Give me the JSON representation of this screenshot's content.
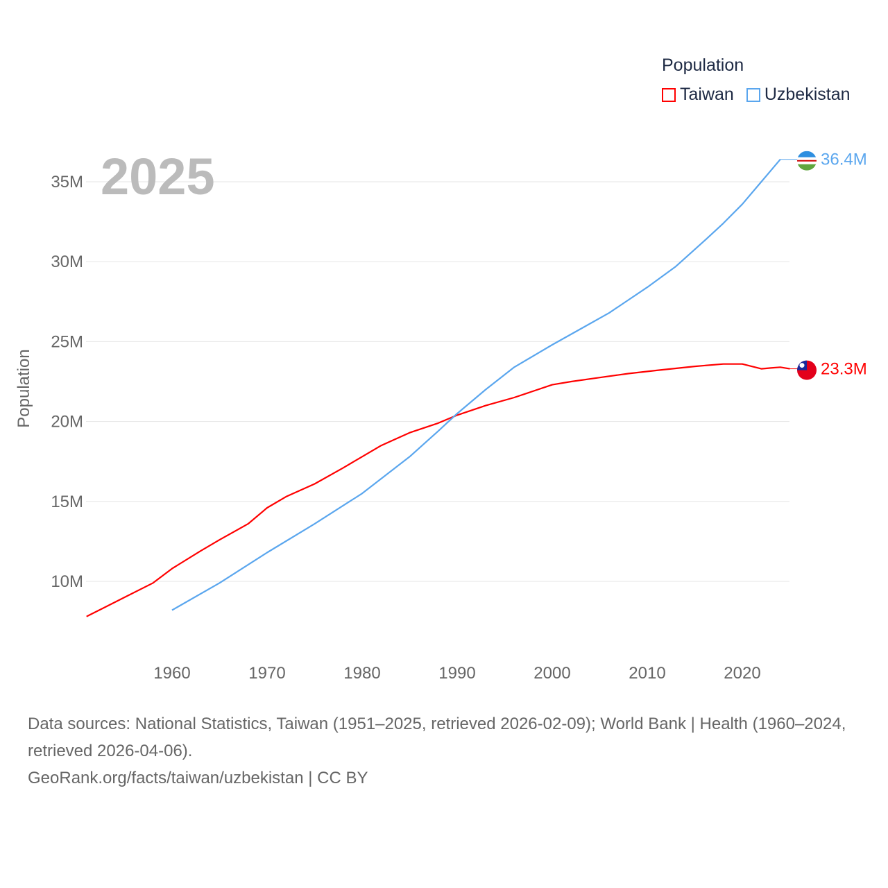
{
  "chart_data": {
    "type": "line",
    "title": "",
    "year_label": "2025",
    "ylabel": "Population",
    "xlabel": "",
    "xlim": [
      1951,
      2025
    ],
    "ylim": [
      7,
      37
    ],
    "x_ticks": [
      1960,
      1970,
      1980,
      1990,
      2000,
      2010,
      2020
    ],
    "x_tick_labels": [
      "1960",
      "1970",
      "1980",
      "1990",
      "2000",
      "2010",
      "2020"
    ],
    "y_ticks": [
      10,
      15,
      20,
      25,
      30,
      35
    ],
    "y_tick_labels": [
      "10M",
      "15M",
      "20M",
      "25M",
      "30M",
      "35M"
    ],
    "grid": true,
    "legend": {
      "title": "Population",
      "placement": "top-right"
    },
    "series": [
      {
        "name": "Taiwan",
        "color": "#ff0000",
        "end_label": "23.3M",
        "flag": "taiwan-flag",
        "x": [
          1951,
          1953,
          1955,
          1958,
          1960,
          1963,
          1965,
          1968,
          1970,
          1972,
          1975,
          1978,
          1980,
          1982,
          1985,
          1988,
          1990,
          1993,
          1996,
          2000,
          2002,
          2005,
          2008,
          2011,
          2015,
          2018,
          2020,
          2022,
          2023,
          2024,
          2025
        ],
        "values": [
          7.8,
          8.4,
          9.0,
          9.9,
          10.8,
          11.9,
          12.6,
          13.6,
          14.6,
          15.3,
          16.1,
          17.1,
          17.8,
          18.5,
          19.3,
          19.9,
          20.4,
          21.0,
          21.5,
          22.3,
          22.5,
          22.75,
          23.0,
          23.2,
          23.45,
          23.6,
          23.6,
          23.3,
          23.35,
          23.4,
          23.3
        ]
      },
      {
        "name": "Uzbekistan",
        "color": "#5aa6ee",
        "end_label": "36.4M",
        "flag": "uzbekistan-flag",
        "x": [
          1960,
          1965,
          1970,
          1975,
          1980,
          1985,
          1988,
          1990,
          1993,
          1996,
          2000,
          2003,
          2006,
          2008,
          2010,
          2013,
          2016,
          2018,
          2020,
          2022,
          2024
        ],
        "values": [
          8.2,
          9.9,
          11.8,
          13.6,
          15.5,
          17.8,
          19.4,
          20.5,
          22.0,
          23.4,
          24.8,
          25.8,
          26.8,
          27.6,
          28.4,
          29.7,
          31.3,
          32.4,
          33.6,
          35.0,
          36.4
        ]
      }
    ]
  },
  "footer": {
    "sources": "Data sources: National Statistics, Taiwan (1951–2025, retrieved 2026-02-09); World Bank | Health (1960–2024, retrieved 2026-04-06).",
    "attribution": "GeoRank.org/facts/taiwan/uzbekistan | CC BY"
  }
}
